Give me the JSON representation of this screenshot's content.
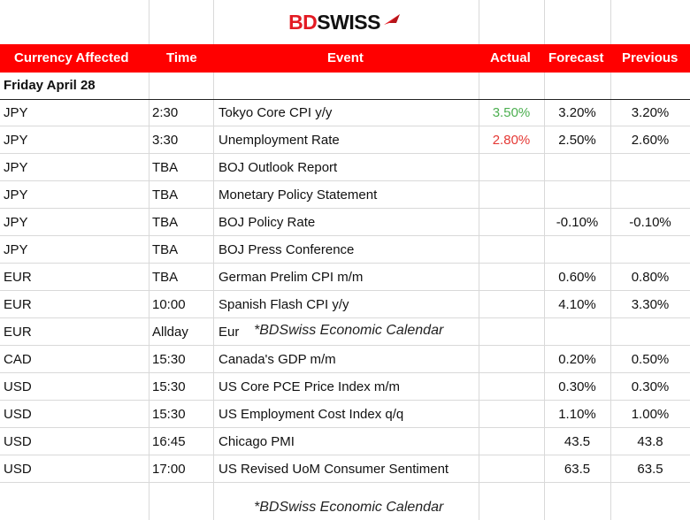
{
  "brand": {
    "part1": "BD",
    "part2": "SWISS"
  },
  "headers": {
    "currency": "Currency Affected",
    "time": "Time",
    "event": "Event",
    "actual": "Actual",
    "forecast": "Forecast",
    "previous": "Previous"
  },
  "day": "Friday April 28",
  "rows": [
    {
      "currency": "JPY",
      "time": "2:30",
      "event": "Tokyo Core CPI y/y",
      "actual": "3.50%",
      "forecast": "3.20%",
      "previous": "3.20%"
    },
    {
      "currency": "JPY",
      "time": "3:30",
      "event": "Unemployment Rate",
      "actual": "2.80%",
      "forecast": "2.50%",
      "previous": "2.60%"
    },
    {
      "currency": "JPY",
      "time": "TBA",
      "event": "BOJ Outlook Report",
      "actual": "",
      "forecast": "",
      "previous": ""
    },
    {
      "currency": "JPY",
      "time": "TBA",
      "event": "Monetary Policy Statement",
      "actual": "",
      "forecast": "",
      "previous": ""
    },
    {
      "currency": "JPY",
      "time": "TBA",
      "event": "BOJ Policy Rate",
      "actual": "",
      "forecast": "-0.10%",
      "previous": "-0.10%"
    },
    {
      "currency": "JPY",
      "time": "TBA",
      "event": "BOJ Press Conference",
      "actual": "",
      "forecast": "",
      "previous": ""
    },
    {
      "currency": "EUR",
      "time": "TBA",
      "event": "German Prelim CPI m/m",
      "actual": "",
      "forecast": "0.60%",
      "previous": "0.80%"
    },
    {
      "currency": "EUR",
      "time": "10:00",
      "event": "Spanish Flash CPI y/y",
      "actual": "",
      "forecast": "4.10%",
      "previous": "3.30%"
    },
    {
      "currency": "EUR",
      "time": "Allday",
      "event": "Eur",
      "actual": "",
      "forecast": "",
      "previous": ""
    },
    {
      "currency": "CAD",
      "time": "15:30",
      "event": "Canada's GDP m/m",
      "actual": "",
      "forecast": "0.20%",
      "previous": "0.50%"
    },
    {
      "currency": "USD",
      "time": "15:30",
      "event": "US Core PCE Price Index m/m",
      "actual": "",
      "forecast": "0.30%",
      "previous": "0.30%"
    },
    {
      "currency": "USD",
      "time": "15:30",
      "event": "US Employment Cost Index q/q",
      "actual": "",
      "forecast": "1.10%",
      "previous": "1.00%"
    },
    {
      "currency": "USD",
      "time": "16:45",
      "event": "Chicago PMI",
      "actual": "",
      "forecast": "43.5",
      "previous": "43.8"
    },
    {
      "currency": "USD",
      "time": "17:00",
      "event": "US Revised UoM Consumer Sentiment",
      "actual": "",
      "forecast": "63.5",
      "previous": "63.5"
    }
  ],
  "watermark": "*BDSwiss Economic Calendar",
  "colors": {
    "header_bg": "#ff0000",
    "actual_up": "#4caf50",
    "actual_down": "#e53935",
    "brand_red": "#e31b23"
  }
}
